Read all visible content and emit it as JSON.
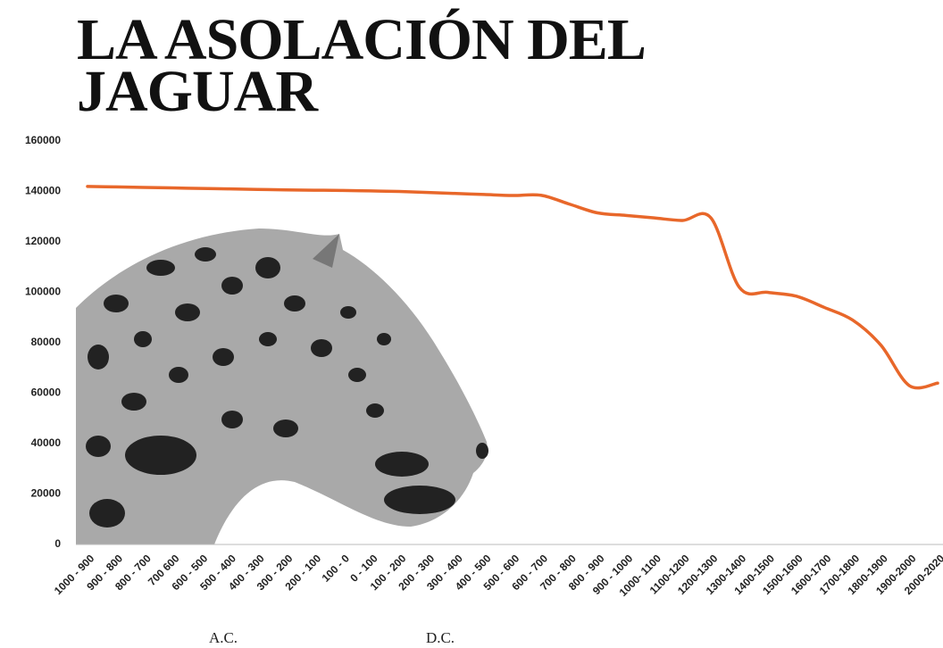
{
  "chart_data": {
    "type": "line",
    "title": "LA ASOLACIÓN DEL JAGUAR",
    "categories": [
      "1000 - 900",
      "900 - 800",
      "800 - 700",
      "700 600",
      "600 - 500",
      "500 - 400",
      "400 - 300",
      "300 - 200",
      "200 - 100",
      "100 - 0",
      "0 - 100",
      "100 - 200",
      "200 - 300",
      "300 - 400",
      "400 - 500",
      "500 - 600",
      "600 - 700",
      "700 - 800",
      "800 - 900",
      "900 - 1000",
      "1000- 1100",
      "1100-1200",
      "1200-1300",
      "1300-1400",
      "1400-1500",
      "1500-1600",
      "1600-1700",
      "1700-1800",
      "1800-1900",
      "1900-2000",
      "2000-2020"
    ],
    "values": [
      142000,
      141800,
      141600,
      141400,
      141200,
      141000,
      140800,
      140600,
      140500,
      140400,
      140200,
      140000,
      139600,
      139200,
      138800,
      138400,
      138500,
      135000,
      131500,
      130500,
      129500,
      128500,
      129500,
      102000,
      100000,
      98500,
      94000,
      89000,
      79000,
      63000,
      64000
    ],
    "color": "#e8672a",
    "ylim": [
      0,
      160000
    ],
    "yticks": [
      0,
      20000,
      40000,
      60000,
      80000,
      100000,
      120000,
      140000,
      160000
    ],
    "grid": false,
    "annotations": [
      "A.C.",
      "D.C."
    ]
  }
}
